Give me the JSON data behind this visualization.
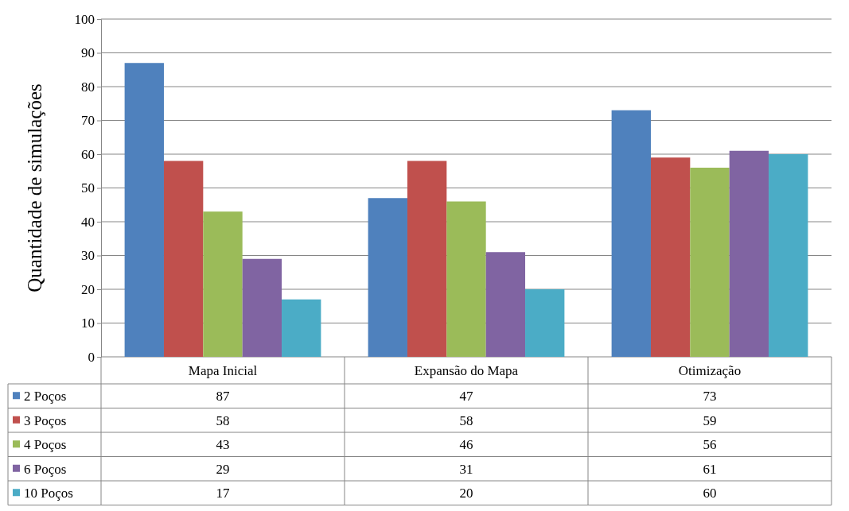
{
  "chart_data": {
    "type": "bar",
    "ylabel": "Quantidade de simulações",
    "categories": [
      "Mapa Inicial",
      "Expansão do Mapa",
      "Otimização"
    ],
    "series": [
      {
        "name": "2 Poços",
        "color": "#4f81bd",
        "values": [
          87,
          47,
          73
        ]
      },
      {
        "name": "3 Poços",
        "color": "#c0504d",
        "values": [
          58,
          58,
          59
        ]
      },
      {
        "name": "4 Poços",
        "color": "#9bbb59",
        "values": [
          43,
          46,
          56
        ]
      },
      {
        "name": "6 Poços",
        "color": "#8064a2",
        "values": [
          29,
          31,
          61
        ]
      },
      {
        "name": "10 Poços",
        "color": "#4bacc6",
        "values": [
          17,
          20,
          60
        ]
      }
    ],
    "ylim": [
      0,
      100
    ],
    "yticks": [
      0,
      10,
      20,
      30,
      40,
      50,
      60,
      70,
      80,
      90,
      100
    ],
    "grid": "y",
    "legend": "bottom left",
    "data_labels": true
  }
}
